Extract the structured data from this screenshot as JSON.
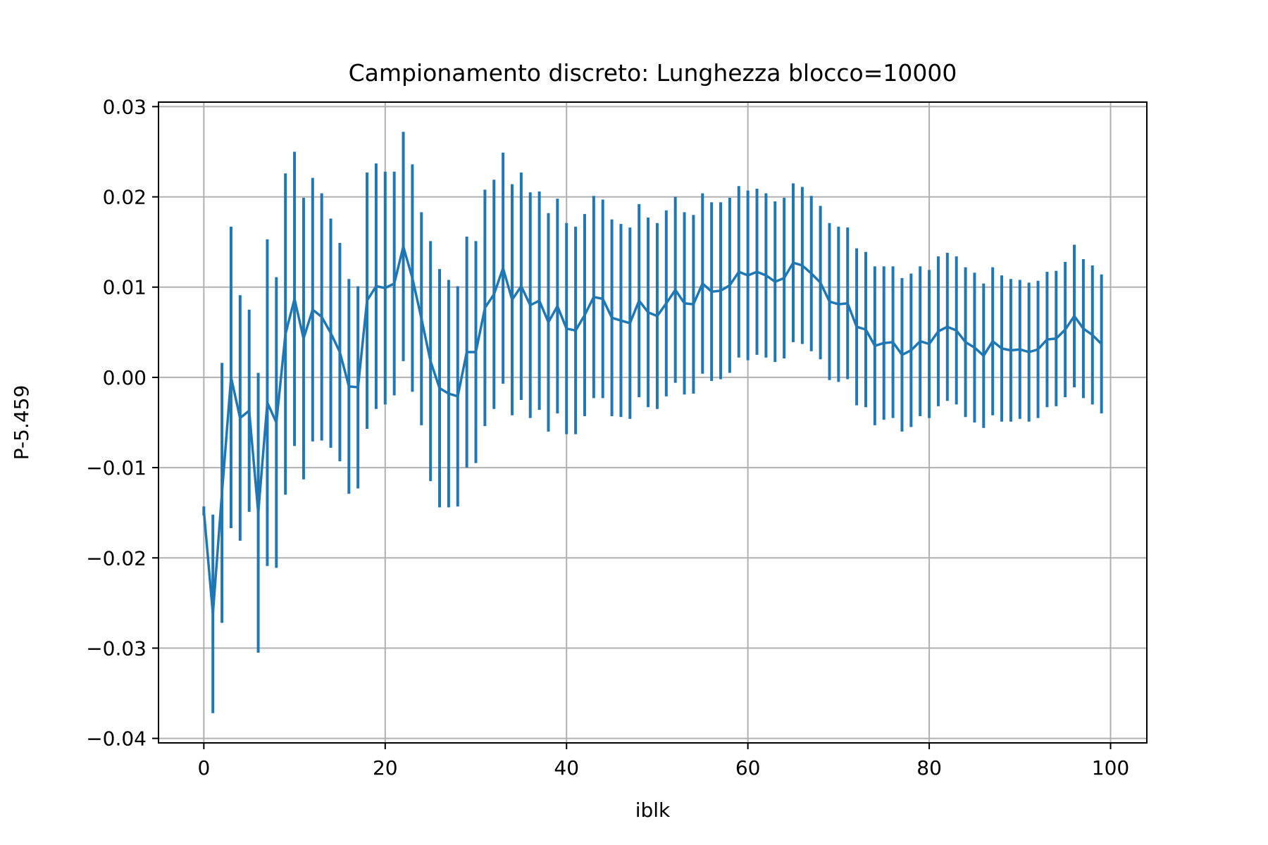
{
  "chart_data": {
    "type": "line",
    "title": "Campionamento discreto: Lunghezza blocco=10000",
    "xlabel": "iblk",
    "ylabel": "P-5.459",
    "xlim": [
      -5,
      104
    ],
    "ylim": [
      -0.0405,
      0.0305
    ],
    "xticks": [
      0,
      20,
      40,
      60,
      80,
      100
    ],
    "xtick_labels": [
      "0",
      "20",
      "40",
      "60",
      "80",
      "100"
    ],
    "yticks": [
      -0.04,
      -0.03,
      -0.02,
      -0.01,
      0.0,
      0.01,
      0.02,
      0.03
    ],
    "ytick_labels": [
      "−0.04",
      "−0.03",
      "−0.02",
      "−0.01",
      "0.00",
      "0.01",
      "0.02",
      "0.03"
    ],
    "grid": true,
    "legend": "none",
    "series": [
      {
        "color": "#1f77b4",
        "error_bars": true,
        "x": [
          0,
          1,
          2,
          3,
          4,
          5,
          6,
          7,
          8,
          9,
          10,
          11,
          12,
          13,
          14,
          15,
          16,
          17,
          18,
          19,
          20,
          21,
          22,
          23,
          24,
          25,
          26,
          27,
          28,
          29,
          30,
          31,
          32,
          33,
          34,
          35,
          36,
          37,
          38,
          39,
          40,
          41,
          42,
          43,
          44,
          45,
          46,
          47,
          48,
          49,
          50,
          51,
          52,
          53,
          54,
          55,
          56,
          57,
          58,
          59,
          60,
          61,
          62,
          63,
          64,
          65,
          66,
          67,
          68,
          69,
          70,
          71,
          72,
          73,
          74,
          75,
          76,
          77,
          78,
          79,
          80,
          81,
          82,
          83,
          84,
          85,
          86,
          87,
          88,
          89,
          90,
          91,
          92,
          93,
          94,
          95,
          96,
          97,
          98,
          99
        ],
        "y": [
          -0.0148,
          -0.0262,
          -0.0128,
          0.0,
          -0.0045,
          -0.0037,
          -0.015,
          -0.0028,
          -0.005,
          0.0048,
          0.0087,
          0.0043,
          0.0075,
          0.0067,
          0.0049,
          0.0028,
          -0.001,
          -0.0011,
          0.0085,
          0.0101,
          0.0099,
          0.0104,
          0.0145,
          0.011,
          0.0065,
          0.0018,
          -0.0012,
          -0.0018,
          -0.0021,
          0.0028,
          0.0028,
          0.0077,
          0.0092,
          0.0121,
          0.0086,
          0.0101,
          0.008,
          0.0085,
          0.0061,
          0.0079,
          0.0054,
          0.0052,
          0.0069,
          0.0089,
          0.0087,
          0.0066,
          0.0063,
          0.006,
          0.0085,
          0.0072,
          0.0068,
          0.0082,
          0.0097,
          0.0082,
          0.0081,
          0.0104,
          0.0095,
          0.0096,
          0.0102,
          0.0117,
          0.0113,
          0.0117,
          0.0113,
          0.0106,
          0.011,
          0.0127,
          0.0124,
          0.0115,
          0.0105,
          0.0084,
          0.0081,
          0.0082,
          0.0056,
          0.0053,
          0.0035,
          0.0038,
          0.0039,
          0.0025,
          0.003,
          0.004,
          0.0037,
          0.0051,
          0.0056,
          0.0052,
          0.0039,
          0.0033,
          0.0024,
          0.004,
          0.0032,
          0.003,
          0.0031,
          0.0028,
          0.0031,
          0.0042,
          0.0043,
          0.0053,
          0.0068,
          0.0054,
          0.0047,
          0.0037
        ],
        "error": [
          0.0005,
          0.011,
          0.0144,
          0.0167,
          0.0136,
          0.0112,
          0.0155,
          0.0181,
          0.0161,
          0.0178,
          0.0163,
          0.0156,
          0.0146,
          0.0137,
          0.0127,
          0.0121,
          0.0119,
          0.0112,
          0.0142,
          0.0136,
          0.0129,
          0.0124,
          0.0127,
          0.0126,
          0.0118,
          0.0133,
          0.0132,
          0.0126,
          0.0122,
          0.0128,
          0.0123,
          0.0131,
          0.0127,
          0.0128,
          0.0128,
          0.0126,
          0.0125,
          0.0121,
          0.0121,
          0.0119,
          0.0117,
          0.0115,
          0.0112,
          0.0112,
          0.011,
          0.0109,
          0.0107,
          0.0106,
          0.0107,
          0.0105,
          0.0103,
          0.0103,
          0.0103,
          0.0101,
          0.0099,
          0.01,
          0.0099,
          0.0098,
          0.0097,
          0.0095,
          0.0094,
          0.0092,
          0.0091,
          0.0089,
          0.0089,
          0.0088,
          0.0087,
          0.0086,
          0.0085,
          0.0087,
          0.0086,
          0.0084,
          0.0087,
          0.0086,
          0.0088,
          0.0085,
          0.0084,
          0.0085,
          0.0085,
          0.0083,
          0.0082,
          0.0083,
          0.0082,
          0.0082,
          0.0083,
          0.0083,
          0.008,
          0.0082,
          0.0081,
          0.0079,
          0.0077,
          0.0077,
          0.0076,
          0.0075,
          0.0075,
          0.0075,
          0.0079,
          0.0077,
          0.0077,
          0.0077
        ]
      }
    ]
  }
}
